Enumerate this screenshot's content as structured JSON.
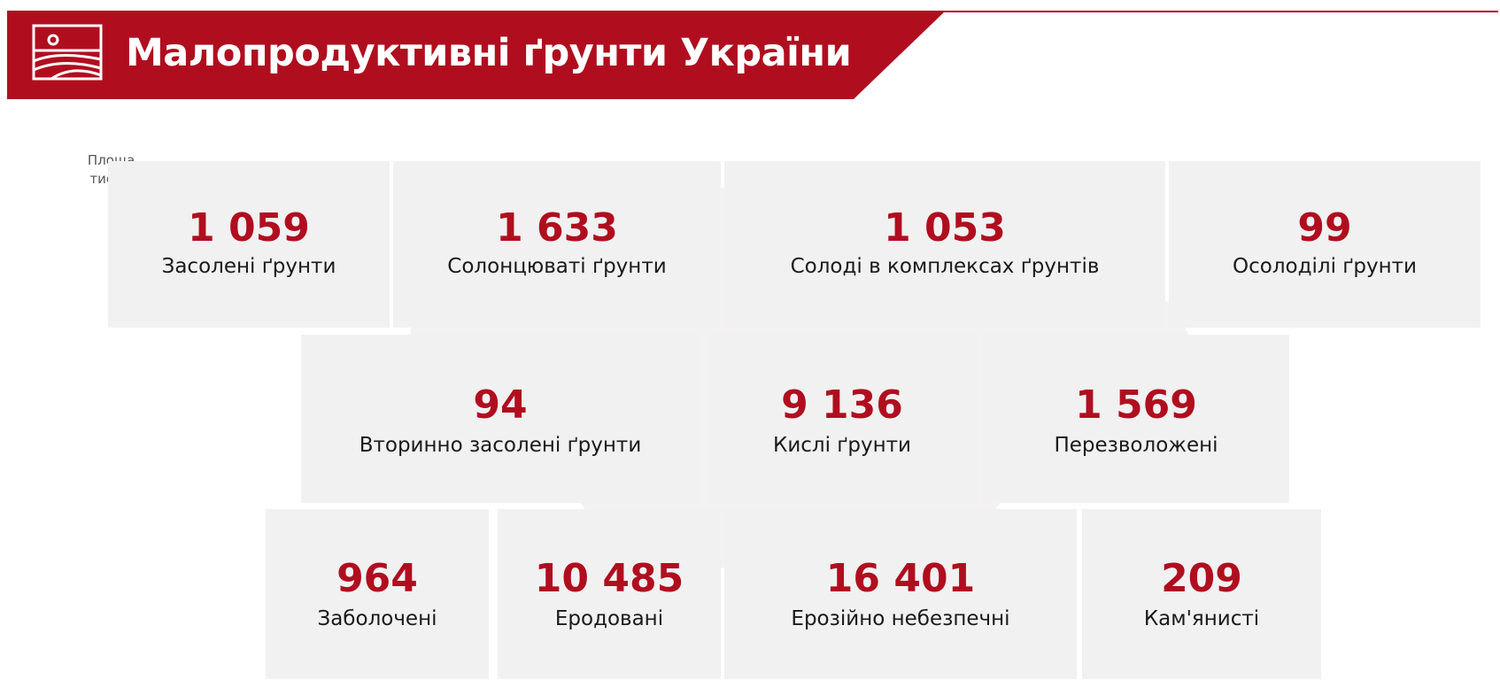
{
  "header": {
    "title": "Малопродуктивні ґрунти України",
    "icon": "field-landscape-icon"
  },
  "unit_note": {
    "line1": "Площа,",
    "line2": "тис. га"
  },
  "colors": {
    "accent": "#b00e1f",
    "tile_bg": "#f1f1f1",
    "label": "#1a1a1a"
  },
  "tiles": [
    {
      "value": "1 059",
      "label": "Засолені ґрунти"
    },
    {
      "value": "1 633",
      "label": "Солонцюваті ґрунти"
    },
    {
      "value": "1 053",
      "label": "Солоді в комплексах ґрунтів"
    },
    {
      "value": "99",
      "label": "Осолоділі ґрунти"
    },
    {
      "value": "94",
      "label": "Вторинно засолені ґрунти"
    },
    {
      "value": "9 136",
      "label": "Кислі ґрунти"
    },
    {
      "value": "1 569",
      "label": "Перезволожені"
    },
    {
      "value": "964",
      "label": "Заболочені"
    },
    {
      "value": "10 485",
      "label": "Еродовані"
    },
    {
      "value": "16 401",
      "label": "Ерозійно небезпечні"
    },
    {
      "value": "209",
      "label": "Кам'янисті"
    }
  ]
}
